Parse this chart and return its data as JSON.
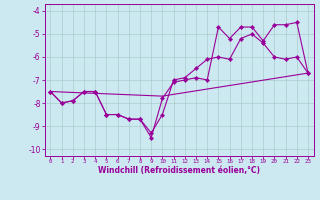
{
  "xlabel": "Windchill (Refroidissement éolien,°C)",
  "background_color": "#cce8f0",
  "grid_color": "#aacccc",
  "line_color": "#990099",
  "xlim": [
    -0.5,
    23.5
  ],
  "ylim": [
    -10.3,
    -3.7
  ],
  "xticks": [
    0,
    1,
    2,
    3,
    4,
    5,
    6,
    7,
    8,
    9,
    10,
    11,
    12,
    13,
    14,
    15,
    16,
    17,
    18,
    19,
    20,
    21,
    22,
    23
  ],
  "yticks": [
    -10,
    -9,
    -8,
    -7,
    -6,
    -5,
    -4
  ],
  "series1_x": [
    0,
    1,
    2,
    3,
    4,
    5,
    6,
    7,
    8,
    9,
    10,
    11,
    12,
    13,
    14,
    15,
    16,
    17,
    18,
    19,
    20,
    21,
    22,
    23
  ],
  "series1_y": [
    -7.5,
    -8.0,
    -7.9,
    -7.5,
    -7.5,
    -8.5,
    -8.5,
    -8.7,
    -8.7,
    -9.3,
    -8.5,
    -7.0,
    -6.9,
    -6.5,
    -6.1,
    -6.0,
    -6.1,
    -5.2,
    -5.0,
    -5.4,
    -6.0,
    -6.1,
    -6.0,
    -6.7
  ],
  "series2_x": [
    0,
    1,
    2,
    3,
    4,
    5,
    6,
    7,
    8,
    9,
    10,
    11,
    12,
    13,
    14,
    15,
    16,
    17,
    18,
    19,
    20,
    21,
    22,
    23
  ],
  "series2_y": [
    -7.5,
    -8.0,
    -7.9,
    -7.5,
    -7.5,
    -8.5,
    -8.5,
    -8.7,
    -8.7,
    -9.5,
    -7.8,
    -7.1,
    -7.0,
    -6.9,
    -7.0,
    -4.7,
    -5.2,
    -4.7,
    -4.7,
    -5.3,
    -4.6,
    -4.6,
    -4.5,
    -6.7
  ],
  "series3_x": [
    0,
    10,
    23
  ],
  "series3_y": [
    -7.5,
    -7.7,
    -6.7
  ],
  "xlabel_fontsize": 5.5,
  "ytick_fontsize": 5.5,
  "xtick_fontsize": 4.2
}
